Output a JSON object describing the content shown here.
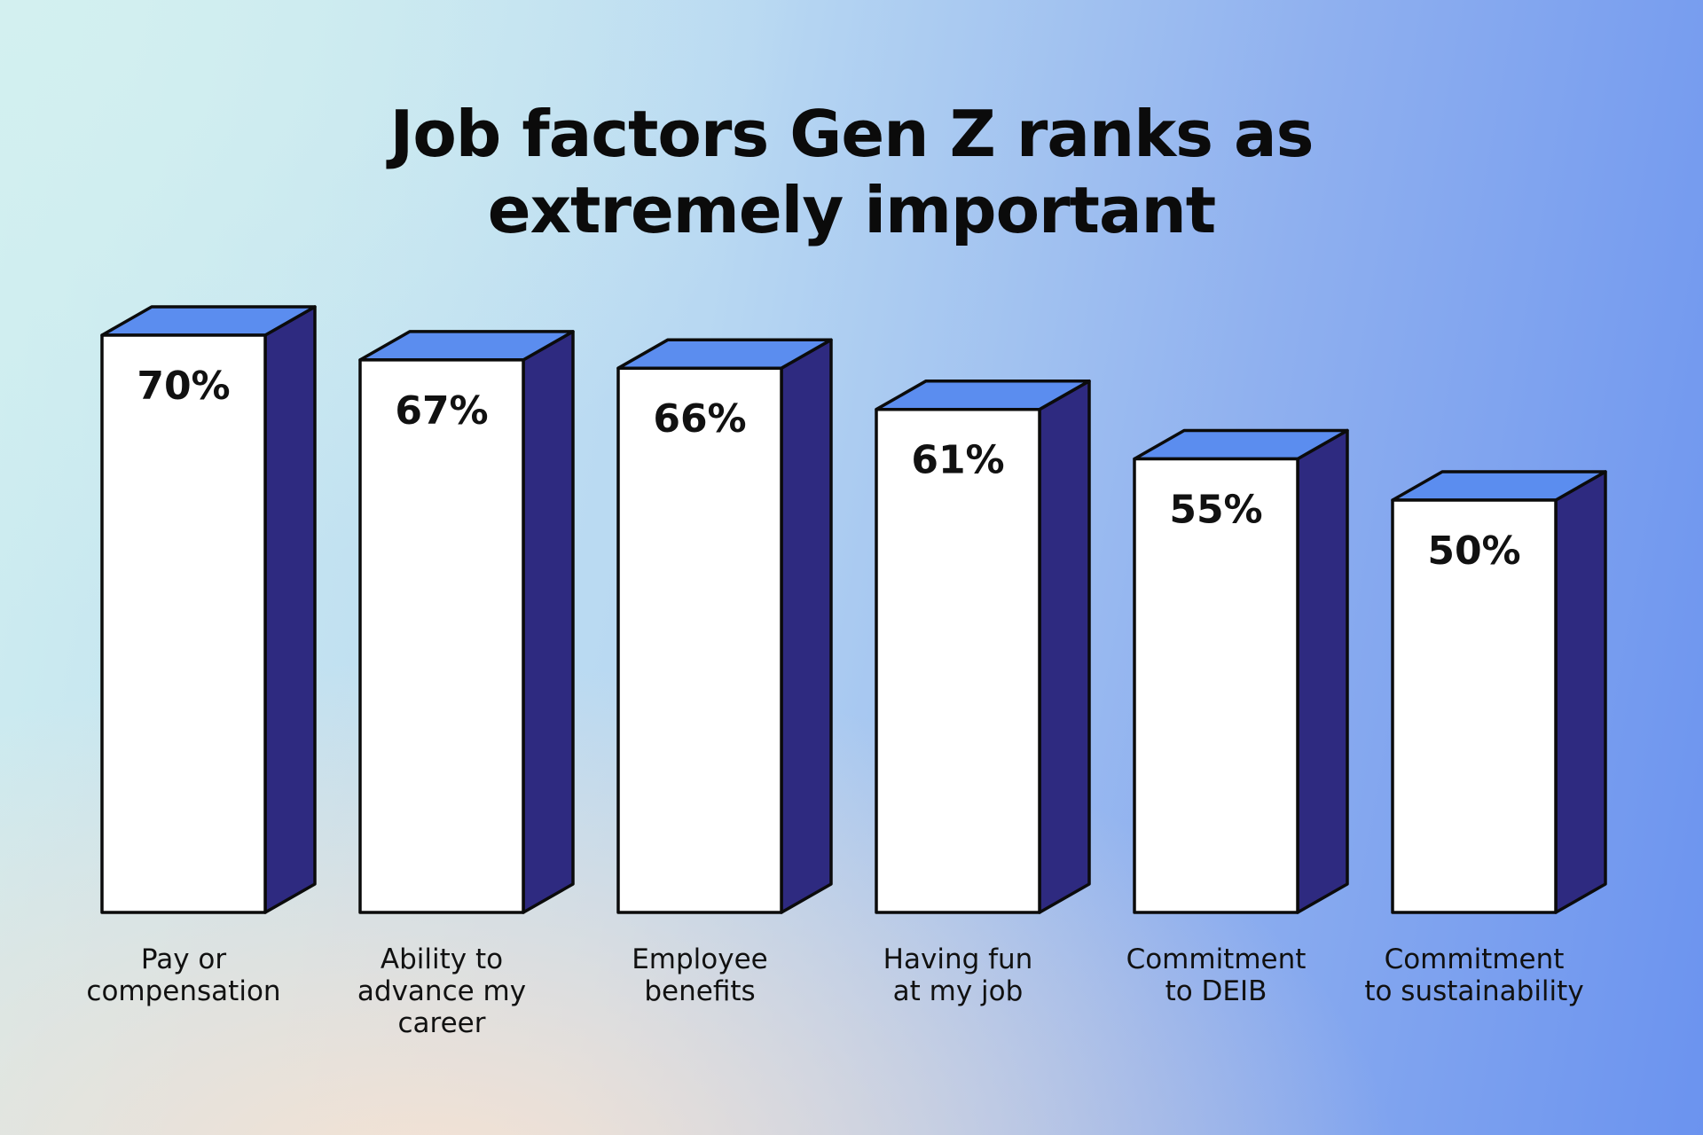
{
  "chart_data": {
    "type": "bar3d",
    "title": "Job factors Gen Z ranks as\nextremely important",
    "categories": [
      "Pay or\ncompensation",
      "Ability to\nadvance my\ncareer",
      "Employee\nbenefits",
      "Having fun\nat my job",
      "Commitment\nto DEIB",
      "Commitment\nto sustainability"
    ],
    "values": [
      70,
      67,
      66,
      61,
      55,
      50
    ],
    "value_labels": [
      "70%",
      "67%",
      "66%",
      "61%",
      "55%",
      "50%"
    ],
    "colors": {
      "front": "#ffffff",
      "top": "#5b8def",
      "side": "#2e2a80"
    }
  }
}
